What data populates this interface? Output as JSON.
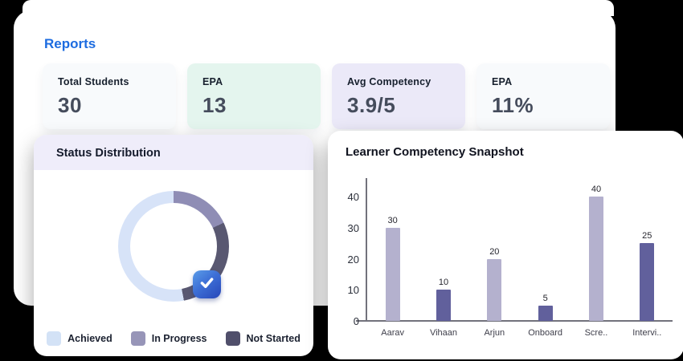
{
  "header": {
    "title": "Reports"
  },
  "stats": [
    {
      "label": "Total Students",
      "value": "30",
      "bg": "#f8fafc"
    },
    {
      "label": "EPA",
      "value": "13",
      "bg": "#e4f5ee"
    },
    {
      "label": "Avg Competency",
      "value": "3.9/5",
      "bg": "#ebe9f8"
    },
    {
      "label": "EPA",
      "value": "11%",
      "bg": "#f8fafc"
    }
  ],
  "status_card": {
    "title": "Status Distribution",
    "legend": [
      {
        "label": "Achieved",
        "color": "#d3e2f6"
      },
      {
        "label": "In Progress",
        "color": "#9795b8"
      },
      {
        "label": "Not Started",
        "color": "#504f6b"
      }
    ],
    "badge_icon": "check-icon"
  },
  "snapshot_card": {
    "title": "Learner Competency Snapshot"
  },
  "chart_data": [
    {
      "type": "pie",
      "subtype": "donut",
      "title": "Status Distribution",
      "start": "top",
      "direction": "clockwise",
      "legend_position": "bottom",
      "segments": [
        {
          "label": "In Progress",
          "value_pct": 18,
          "color": "#8f8db5"
        },
        {
          "label": "Not Started",
          "value_pct": 29,
          "color": "#595871"
        },
        {
          "label": "Achieved",
          "value_pct": 53,
          "color": "#d7e3f8"
        }
      ]
    },
    {
      "type": "bar",
      "title": "Learner Competency Snapshot",
      "categories": [
        "Aarav",
        "Vihaan",
        "Arjun",
        "Onboard",
        "Scre..",
        "Intervi.."
      ],
      "values": [
        30,
        10,
        20,
        5,
        40,
        25
      ],
      "bar_colors": [
        "#b4b1ce",
        "#61609c",
        "#b4b1ce",
        "#61609c",
        "#b4b1ce",
        "#61609c"
      ],
      "y_ticks": [
        0,
        10,
        20,
        30,
        40
      ],
      "ylim": [
        0,
        46
      ],
      "grid": false,
      "data_labels": true,
      "xlabel": "",
      "ylabel": ""
    }
  ],
  "colors": {
    "background": "#000000",
    "card": "#ffffff",
    "accent_blue": "#1d6ce0",
    "stat_value": "#454c5c",
    "axis": "#72727c"
  }
}
